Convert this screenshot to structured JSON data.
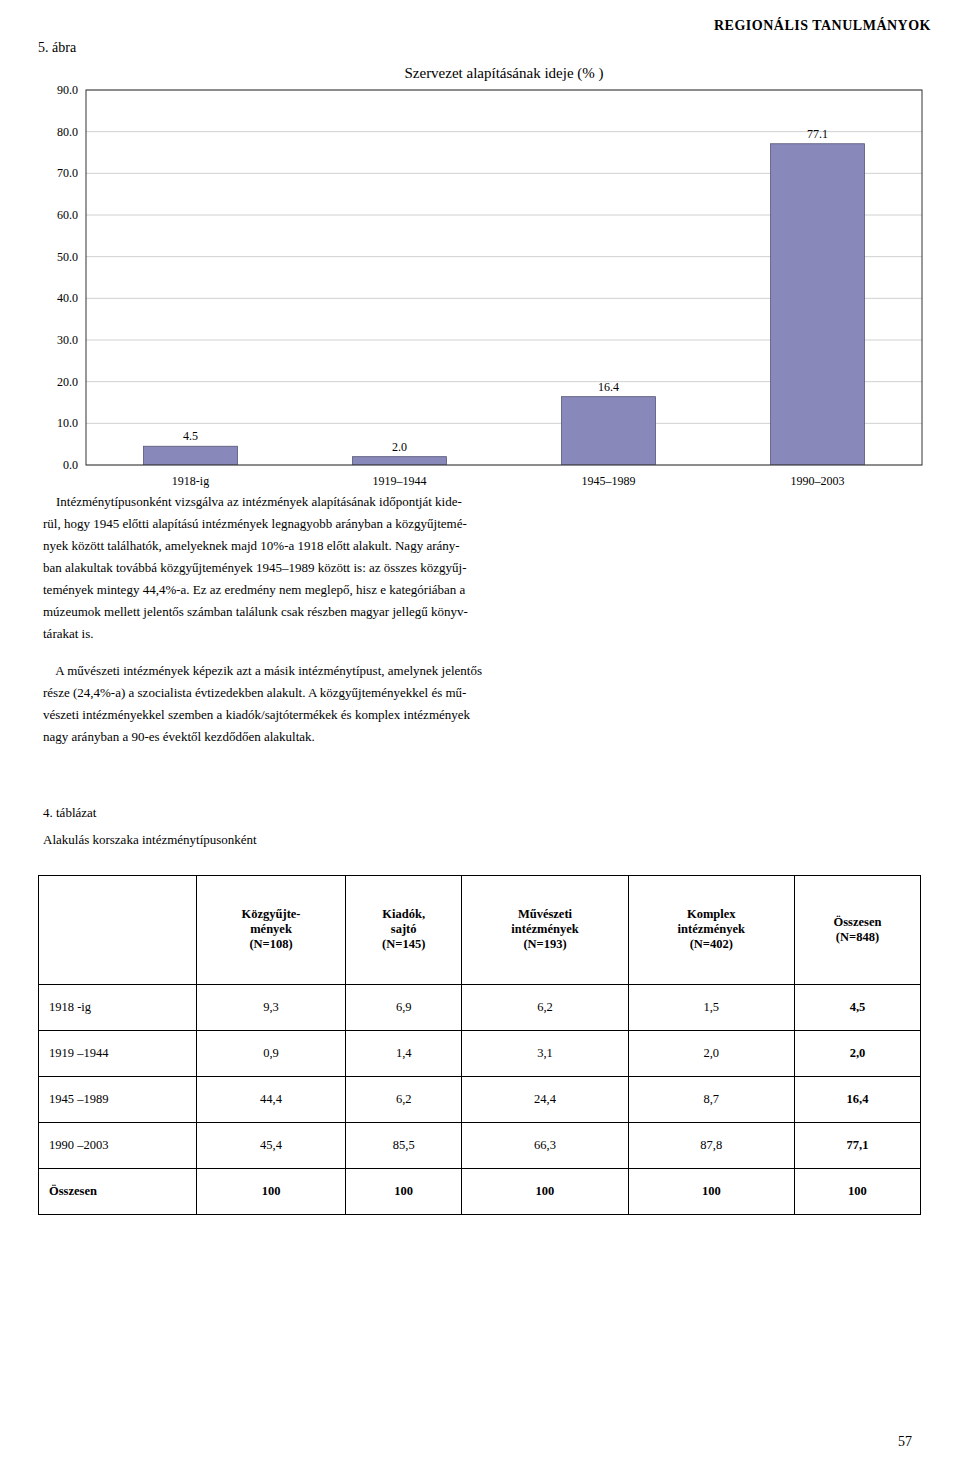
{
  "page_title": "REGIONÁLIS TANULMÁNYOK",
  "figure_label": "5. ábra",
  "chart_data": {
    "type": "bar",
    "title": "Szervezet alapításának ideje (% )",
    "categories": [
      "1918-ig",
      "1919–1944",
      "1945–1989",
      "1990–2003"
    ],
    "values": [
      4.5,
      2.0,
      16.4,
      77.1
    ],
    "value_labels": [
      "4.5",
      "2.0",
      "16.4",
      "77.1"
    ],
    "data_labels": true,
    "color": "#8888bb",
    "ylim": [
      0,
      90
    ],
    "yticks": [
      {
        "value": 0,
        "label": "0.0"
      },
      {
        "value": 10,
        "label": "10.0"
      },
      {
        "value": 20,
        "label": "20.0"
      },
      {
        "value": 30,
        "label": "30.0"
      },
      {
        "value": 40,
        "label": "40.0"
      },
      {
        "value": 50,
        "label": "50.0"
      },
      {
        "value": 60,
        "label": "60.0"
      },
      {
        "value": 70,
        "label": "70.0"
      },
      {
        "value": 80,
        "label": "80.0"
      },
      {
        "value": 90,
        "label": "90.0"
      }
    ],
    "grid": true
  },
  "paragraphs": [
    [
      "    Intézménytípusonként vizsgálva az intézmények alapításának időpontját kide-",
      "rül, hogy 1945 előtti alapítású intézmények legnagyobb arányban a közgyűjtemé-",
      "nyek között találhatók, amelyeknek majd 10%-a 1918 előtt alakult. Nagy arány-",
      "ban alakultak továbbá közgyűjtemények 1945–1989 között is: az összes közgyűj-",
      "temények mintegy 44,4%-a. Ez az eredmény nem meglepő, hisz e kategóriában a",
      "múzeumok mellett jelentős számban találunk csak részben magyar jellegű könyv-",
      "tárakat is."
    ],
    [
      "    A művészeti intézmények képezik azt a másik intézménytípust, amelynek jelentős",
      "része (24,4%-a) a szocialista évtizedekben alakult. A közgyűjteményekkel és mű-",
      "vészeti intézményekkel szemben a kiadók/sajtótermékek és komplex intézmények",
      "nagy arányban a 90-es évektől kezdődően alakultak."
    ]
  ],
  "table": {
    "label": "4. táblázat",
    "subtitle": "Alakulás korszaka intézménytípusonként",
    "headers": [
      "Közgyűjte-\nmények\n(N=108)",
      "Kiadók,\nsajtó\n(N=145)",
      "Művészeti\nintézmények\n(N=193)",
      "Komplex\nintézmények\n(N=402)",
      "Összesen\n(N=848)"
    ],
    "rows": [
      [
        "1918 -ig",
        "9,3",
        "6,9",
        "6,2",
        "1,5",
        "4,5"
      ],
      [
        "1919 –1944",
        "0,9",
        "1,4",
        "3,1",
        "2,0",
        "2,0"
      ],
      [
        "1945 –1989",
        "44,4",
        "6,2",
        "24,4",
        "8,7",
        "16,4"
      ],
      [
        "1990 –2003",
        "45,4",
        "85,5",
        "66,3",
        "87,8",
        "77,1"
      ],
      [
        "Összesen",
        "100",
        "100",
        "100",
        "100",
        "100"
      ]
    ]
  },
  "page_number": "57"
}
